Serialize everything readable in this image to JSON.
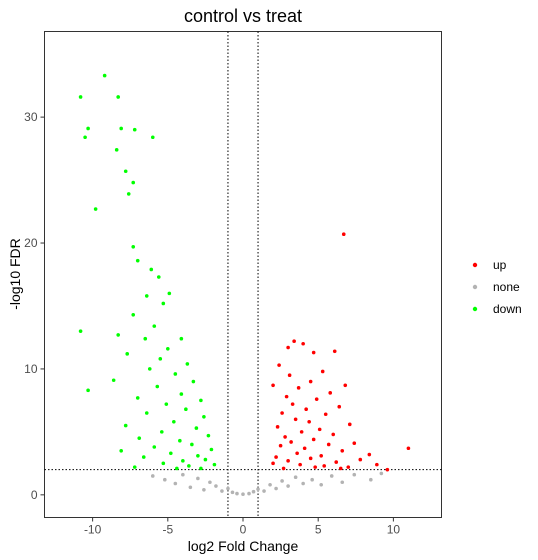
{
  "chart_data": {
    "type": "scatter",
    "title": "control vs treat",
    "xlabel": "log2 Fold Change",
    "ylabel": "-log10 FDR",
    "xlim": [
      -13.2,
      13.2
    ],
    "ylim": [
      -1.8,
      36.8
    ],
    "x_ticks": [
      -10,
      -5,
      0,
      5,
      10
    ],
    "y_ticks": [
      0,
      10,
      20,
      30
    ],
    "grid": false,
    "legend_position": "right",
    "thresholds": {
      "log2fc": [
        -1,
        1
      ],
      "neg_log10_fdr": 2
    },
    "series": [
      {
        "name": "up",
        "color": "#ff0000",
        "points": [
          [
            6.7,
            20.7
          ],
          [
            11.0,
            3.7
          ],
          [
            3.4,
            12.2
          ],
          [
            4.0,
            12.0
          ],
          [
            3.0,
            11.7
          ],
          [
            4.7,
            11.3
          ],
          [
            6.1,
            11.4
          ],
          [
            2.4,
            10.3
          ],
          [
            5.3,
            9.8
          ],
          [
            3.1,
            9.5
          ],
          [
            4.5,
            9.0
          ],
          [
            2.0,
            8.7
          ],
          [
            3.7,
            8.5
          ],
          [
            6.8,
            8.7
          ],
          [
            5.8,
            8.1
          ],
          [
            2.9,
            7.8
          ],
          [
            4.9,
            7.6
          ],
          [
            3.3,
            7.2
          ],
          [
            6.4,
            7.0
          ],
          [
            4.2,
            6.8
          ],
          [
            2.6,
            6.5
          ],
          [
            5.5,
            6.4
          ],
          [
            3.5,
            6.0
          ],
          [
            4.4,
            5.8
          ],
          [
            7.1,
            5.6
          ],
          [
            2.3,
            5.4
          ],
          [
            5.1,
            5.2
          ],
          [
            3.9,
            5.0
          ],
          [
            6.0,
            4.8
          ],
          [
            2.8,
            4.6
          ],
          [
            4.7,
            4.4
          ],
          [
            3.2,
            4.2
          ],
          [
            5.7,
            4.0
          ],
          [
            7.4,
            4.1
          ],
          [
            2.5,
            3.9
          ],
          [
            4.1,
            3.7
          ],
          [
            6.6,
            3.5
          ],
          [
            8.4,
            3.2
          ],
          [
            3.6,
            3.3
          ],
          [
            5.2,
            3.1
          ],
          [
            2.2,
            3.0
          ],
          [
            4.5,
            2.9
          ],
          [
            7.8,
            2.8
          ],
          [
            3.0,
            2.7
          ],
          [
            6.2,
            2.6
          ],
          [
            8.9,
            2.4
          ],
          [
            2.0,
            2.5
          ],
          [
            3.8,
            2.4
          ],
          [
            5.4,
            2.3
          ],
          [
            4.8,
            2.2
          ],
          [
            7.0,
            2.2
          ],
          [
            2.7,
            2.1
          ],
          [
            9.6,
            2.0
          ],
          [
            6.5,
            2.1
          ]
        ]
      },
      {
        "name": "none",
        "color": "#b3b3b3",
        "points": [
          [
            -6.0,
            1.5
          ],
          [
            -5.2,
            1.2
          ],
          [
            -4.5,
            0.9
          ],
          [
            -4.0,
            1.6
          ],
          [
            -3.5,
            0.6
          ],
          [
            -3.0,
            1.3
          ],
          [
            -2.6,
            0.4
          ],
          [
            -2.2,
            1.0
          ],
          [
            -1.8,
            0.7
          ],
          [
            -1.4,
            0.3
          ],
          [
            -1.0,
            0.5
          ],
          [
            -0.7,
            0.2
          ],
          [
            -0.4,
            0.1
          ],
          [
            0.0,
            0.05
          ],
          [
            0.4,
            0.1
          ],
          [
            0.7,
            0.25
          ],
          [
            1.0,
            0.45
          ],
          [
            1.4,
            0.3
          ],
          [
            1.8,
            0.8
          ],
          [
            2.2,
            0.5
          ],
          [
            2.6,
            1.1
          ],
          [
            3.0,
            0.7
          ],
          [
            3.5,
            1.4
          ],
          [
            4.0,
            0.9
          ],
          [
            4.6,
            1.2
          ],
          [
            5.2,
            0.8
          ],
          [
            5.9,
            1.5
          ],
          [
            6.6,
            1.0
          ],
          [
            7.4,
            1.6
          ],
          [
            8.5,
            1.2
          ],
          [
            9.2,
            1.7
          ]
        ]
      },
      {
        "name": "down",
        "color": "#00ff00",
        "points": [
          [
            -9.2,
            33.3
          ],
          [
            -10.8,
            31.6
          ],
          [
            -8.3,
            31.6
          ],
          [
            -10.3,
            29.1
          ],
          [
            -8.1,
            29.1
          ],
          [
            -7.2,
            29.0
          ],
          [
            -10.5,
            28.4
          ],
          [
            -6.0,
            28.4
          ],
          [
            -8.4,
            27.4
          ],
          [
            -7.8,
            25.7
          ],
          [
            -7.3,
            24.8
          ],
          [
            -7.6,
            23.9
          ],
          [
            -9.8,
            22.7
          ],
          [
            -7.3,
            19.7
          ],
          [
            -7.0,
            18.6
          ],
          [
            -6.1,
            17.9
          ],
          [
            -5.6,
            17.3
          ],
          [
            -4.9,
            16.0
          ],
          [
            -6.4,
            15.8
          ],
          [
            -5.3,
            15.2
          ],
          [
            -7.3,
            14.3
          ],
          [
            -5.9,
            13.4
          ],
          [
            -10.8,
            13.0
          ],
          [
            -8.3,
            12.7
          ],
          [
            -6.5,
            12.4
          ],
          [
            -4.1,
            12.4
          ],
          [
            -5.0,
            11.6
          ],
          [
            -7.7,
            11.2
          ],
          [
            -5.5,
            10.8
          ],
          [
            -3.7,
            10.4
          ],
          [
            -6.2,
            10.0
          ],
          [
            -4.5,
            9.6
          ],
          [
            -8.6,
            9.1
          ],
          [
            -3.3,
            9.0
          ],
          [
            -5.7,
            8.6
          ],
          [
            -10.3,
            8.3
          ],
          [
            -4.1,
            8.0
          ],
          [
            -7.0,
            7.7
          ],
          [
            -2.8,
            7.5
          ],
          [
            -5.1,
            7.2
          ],
          [
            -3.8,
            6.8
          ],
          [
            -6.4,
            6.5
          ],
          [
            -2.6,
            6.2
          ],
          [
            -4.6,
            5.8
          ],
          [
            -7.8,
            5.5
          ],
          [
            -3.1,
            5.3
          ],
          [
            -5.4,
            5.0
          ],
          [
            -2.3,
            4.7
          ],
          [
            -6.9,
            4.5
          ],
          [
            -4.2,
            4.3
          ],
          [
            -3.4,
            4.0
          ],
          [
            -5.9,
            3.8
          ],
          [
            -2.1,
            3.6
          ],
          [
            -8.1,
            3.5
          ],
          [
            -4.8,
            3.3
          ],
          [
            -3.0,
            3.1
          ],
          [
            -6.6,
            3.0
          ],
          [
            -2.5,
            2.8
          ],
          [
            -4.0,
            2.7
          ],
          [
            -5.3,
            2.5
          ],
          [
            -1.9,
            2.4
          ],
          [
            -3.6,
            2.3
          ],
          [
            -7.2,
            2.2
          ],
          [
            -2.8,
            2.1
          ],
          [
            -4.4,
            2.1
          ]
        ]
      }
    ]
  }
}
